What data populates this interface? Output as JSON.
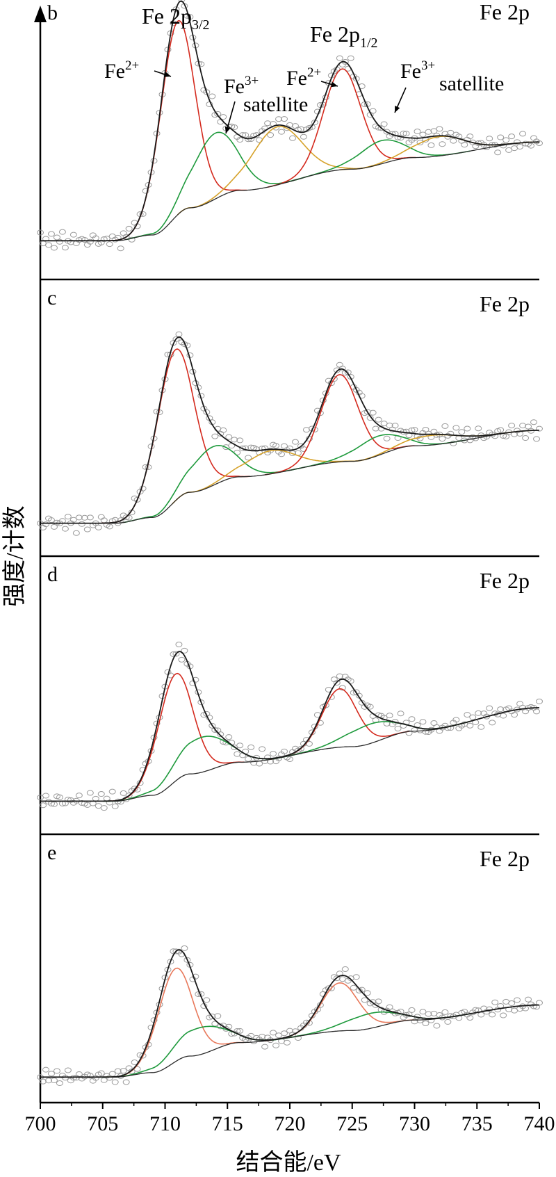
{
  "chart_data": {
    "type": "line",
    "xlabel": "结合能/eV",
    "ylabel": "强度/计数",
    "xlim": [
      700,
      740
    ],
    "x_ticks": [
      700,
      705,
      710,
      715,
      720,
      725,
      730,
      735,
      740
    ],
    "x_reversed": false,
    "grid": false,
    "legend": "none",
    "colors": {
      "envelope": "#1a1a1a",
      "data": "#9a9a9a",
      "fe2": "#d42a1e",
      "fe3": "#1e9a3c",
      "satellite": "#d6a22a",
      "background": "#2a2a2a",
      "fe2_panel_e": "#e8785a"
    },
    "panels": [
      {
        "label": "b",
        "title": "Fe  2p",
        "annotations": [
          {
            "base": "Fe 2p",
            "sub": "3/2",
            "at": 711
          },
          {
            "base": "Fe 2p",
            "sub": "1/2",
            "at": 724.5
          },
          {
            "base": "Fe",
            "sup": "2+",
            "at": 709.5
          },
          {
            "base": "Fe",
            "sup": "3+",
            "at": 716
          },
          {
            "base": "satellite",
            "at": 719
          },
          {
            "base": "Fe",
            "sup": "2+",
            "at": 723
          },
          {
            "base": "Fe",
            "sup": "3+",
            "at": 729
          },
          {
            "base": "satellite",
            "at": 733
          }
        ],
        "y_range": [
          -0.15,
          1.15
        ],
        "background_curve": {
          "x": [
            700,
            706,
            709,
            712,
            716,
            725,
            730,
            740
          ],
          "y": [
            0.05,
            0.05,
            0.08,
            0.22,
            0.31,
            0.42,
            0.48,
            0.56
          ]
        },
        "components": [
          {
            "name": "Fe2+ 2p3/2",
            "role": "fe2",
            "center": 711.0,
            "height": 1.0,
            "width": 1.4
          },
          {
            "name": "Fe3+ 2p3/2",
            "role": "fe3",
            "center": 714.0,
            "height": 0.34,
            "width": 1.8
          },
          {
            "name": "satellite 2p3/2",
            "role": "satellite",
            "center": 719.0,
            "height": 0.3,
            "width": 2.0
          },
          {
            "name": "Fe2+ 2p1/2",
            "role": "fe2",
            "center": 724.2,
            "height": 0.52,
            "width": 1.5
          },
          {
            "name": "Fe3+ 2p1/2",
            "role": "fe3",
            "center": 727.3,
            "height": 0.12,
            "width": 1.8
          },
          {
            "name": "satellite 2p1/2",
            "role": "satellite",
            "center": 732.0,
            "height": 0.1,
            "width": 2.0
          }
        ]
      },
      {
        "label": "c",
        "title": "Fe  2p",
        "y_range": [
          -0.15,
          1.25
        ],
        "background_curve": {
          "x": [
            700,
            706,
            709,
            712,
            716,
            725,
            730,
            740
          ],
          "y": [
            0.02,
            0.02,
            0.05,
            0.18,
            0.26,
            0.34,
            0.42,
            0.5
          ]
        },
        "components": [
          {
            "name": "Fe2+ 2p3/2",
            "role": "fe2",
            "center": 710.8,
            "height": 0.78,
            "width": 1.5
          },
          {
            "name": "Fe3+ 2p3/2",
            "role": "fe3",
            "center": 713.8,
            "height": 0.2,
            "width": 1.8
          },
          {
            "name": "satellite 2p3/2",
            "role": "satellite",
            "center": 718.5,
            "height": 0.12,
            "width": 2.0
          },
          {
            "name": "Fe2+ 2p1/2",
            "role": "fe2",
            "center": 724.0,
            "height": 0.45,
            "width": 1.5
          },
          {
            "name": "Fe3+ 2p1/2",
            "role": "fe3",
            "center": 727.0,
            "height": 0.1,
            "width": 1.8
          },
          {
            "name": "satellite 2p1/2",
            "role": "satellite",
            "center": 731.5,
            "height": 0.05,
            "width": 2.0
          }
        ]
      },
      {
        "label": "d",
        "title": "Fe  2p",
        "y_range": [
          -0.15,
          1.25
        ],
        "background_curve": {
          "x": [
            700,
            706,
            709,
            712,
            716,
            725,
            730,
            740
          ],
          "y": [
            0.02,
            0.02,
            0.05,
            0.16,
            0.22,
            0.3,
            0.38,
            0.5
          ]
        },
        "components": [
          {
            "name": "Fe2+ 2p3/2",
            "role": "fe2",
            "center": 710.8,
            "height": 0.55,
            "width": 1.4
          },
          {
            "name": "Fe3+ 2p3/2",
            "role": "fe3",
            "center": 713.0,
            "height": 0.18,
            "width": 2.0
          },
          {
            "name": "Fe2+ 2p1/2",
            "role": "fe2",
            "center": 724.0,
            "height": 0.3,
            "width": 1.4
          },
          {
            "name": "Fe3+ 2p1/2",
            "role": "fe3",
            "center": 726.5,
            "height": 0.1,
            "width": 2.0
          }
        ]
      },
      {
        "label": "e",
        "title": "Fe  2p",
        "y_range": [
          -0.15,
          1.6
        ],
        "background_curve": {
          "x": [
            700,
            706,
            709,
            712,
            716,
            725,
            730,
            740
          ],
          "y": [
            0.02,
            0.02,
            0.05,
            0.16,
            0.25,
            0.33,
            0.4,
            0.5
          ]
        },
        "components": [
          {
            "name": "Fe2+ 2p3/2",
            "role": "fe2",
            "center": 710.8,
            "height": 0.62,
            "width": 1.4
          },
          {
            "name": "Fe3+ 2p3/2",
            "role": "fe3",
            "center": 712.8,
            "height": 0.18,
            "width": 2.0
          },
          {
            "name": "Fe2+ 2p1/2",
            "role": "fe2",
            "center": 724.0,
            "height": 0.32,
            "width": 1.5
          },
          {
            "name": "Fe3+ 2p1/2",
            "role": "fe3",
            "center": 726.5,
            "height": 0.1,
            "width": 2.0
          }
        ]
      }
    ]
  }
}
